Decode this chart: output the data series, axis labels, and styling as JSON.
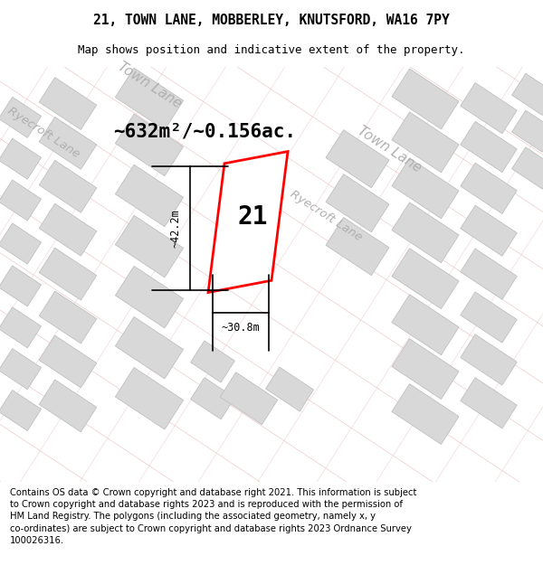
{
  "title": "21, TOWN LANE, MOBBERLEY, KNUTSFORD, WA16 7PY",
  "subtitle": "Map shows position and indicative extent of the property.",
  "footer": "Contains OS data © Crown copyright and database right 2021. This information is subject\nto Crown copyright and database rights 2023 and is reproduced with the permission of\nHM Land Registry. The polygons (including the associated geometry, namely x, y\nco-ordinates) are subject to Crown copyright and database rights 2023 Ordnance Survey\n100026316.",
  "area_label": "~632m²/~0.156ac.",
  "width_label": "~30.8m",
  "height_label": "~42.2m",
  "plot_number": "21",
  "bg_color": "#faf7f7",
  "block_fill": "#d8d8d8",
  "block_edge": "#c0c0c0",
  "road_line_color": "#e8c0c0",
  "red_plot_color": "#ff0000",
  "street_name_color": "#b0b0b0",
  "title_fontsize": 10.5,
  "subtitle_fontsize": 9,
  "footer_fontsize": 7.2,
  "area_label_fontsize": 15,
  "plot_label_fontsize": 20,
  "road_ang": -33,
  "map_xlim": [
    0,
    600
  ],
  "map_ylim": [
    0,
    450
  ]
}
